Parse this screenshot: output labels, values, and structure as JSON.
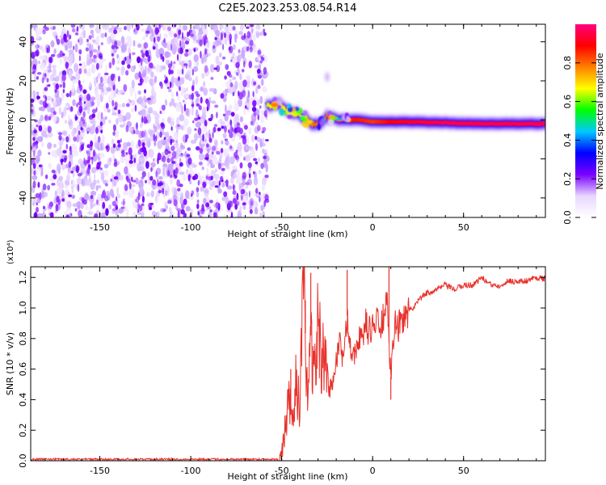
{
  "title": "C2E5.2023.253.08.54.R14",
  "chart_data": [
    {
      "type": "heatmap",
      "xlabel": "Height of straight line (km)",
      "ylabel": "Frequency (Hz)",
      "xlim": [
        -188,
        95
      ],
      "ylim": [
        -50,
        49
      ],
      "xticks": [
        -150,
        -100,
        -50,
        0,
        50
      ],
      "yticks": [
        -40,
        -20,
        0,
        20,
        40
      ],
      "colorbar": {
        "label": "Normalized spectral amplitude",
        "range": [
          0.0,
          1.0
        ],
        "ticks": [
          "0.0",
          "0.2",
          "0.4",
          "0.6",
          "0.8"
        ],
        "colors": [
          "#ffffff",
          "#e8d6ff",
          "#7a00ff",
          "#0000ff",
          "#00c8ff",
          "#00ff00",
          "#ffff00",
          "#ff8000",
          "#ff0000",
          "#ff0080"
        ]
      },
      "noise_region_x": [
        -188,
        -58
      ],
      "ridge": {
        "x": [
          -58,
          -52,
          -47,
          -42,
          -37,
          -33,
          -29,
          -25,
          -21,
          -15,
          -8,
          0,
          10,
          20,
          40,
          60,
          80,
          95
        ],
        "frequency": [
          7,
          8,
          5,
          3,
          1,
          -2,
          -3,
          2,
          0,
          0,
          0,
          -1,
          -1,
          -1,
          -1.5,
          -2,
          -2,
          -2
        ],
        "amplitude": [
          0.45,
          0.6,
          0.45,
          0.5,
          0.5,
          0.7,
          0.75,
          0.7,
          0.8,
          0.85,
          0.85,
          0.8,
          0.9,
          0.95,
          1.0,
          1.0,
          1.0,
          1.0
        ]
      },
      "artifact": {
        "x": -25,
        "frequency": 22
      }
    },
    {
      "type": "line",
      "xlabel": "Height of straight line (km)",
      "ylabel": "SNR (10 * v/v)",
      "scale_label": "(x10⁴)",
      "xlim": [
        -188,
        95
      ],
      "ylim": [
        0,
        1.27
      ],
      "xticks": [
        -150,
        -100,
        -50,
        0,
        50
      ],
      "yticks": [
        "0.0",
        "0.2",
        "0.4",
        "0.6",
        "0.8",
        "1.0",
        "1.2"
      ],
      "color": "#e8302a",
      "x": [
        -188,
        -150,
        -100,
        -52,
        -50,
        -48,
        -46,
        -44,
        -42,
        -40,
        -38,
        -36,
        -34,
        -32,
        -30,
        -28,
        -26,
        -24,
        -22,
        -20,
        -18,
        -16,
        -14,
        -12,
        -10,
        -8,
        -6,
        -4,
        -2,
        0,
        2,
        4,
        6,
        8,
        10,
        12,
        14,
        16,
        18,
        20,
        22,
        25,
        30,
        35,
        40,
        45,
        50,
        55,
        60,
        65,
        70,
        75,
        80,
        85,
        90,
        95
      ],
      "y": [
        0.01,
        0.01,
        0.01,
        0.01,
        0.03,
        0.22,
        0.38,
        0.22,
        0.55,
        0.32,
        1.22,
        0.45,
        0.82,
        0.55,
        0.92,
        0.6,
        0.75,
        0.45,
        0.52,
        0.65,
        0.8,
        0.62,
        0.95,
        0.75,
        0.7,
        0.82,
        0.78,
        0.9,
        0.85,
        0.88,
        0.92,
        0.85,
        0.95,
        1.0,
        0.55,
        0.9,
        0.85,
        0.95,
        0.92,
        1.0,
        0.98,
        1.05,
        1.1,
        1.12,
        1.15,
        1.12,
        1.15,
        1.15,
        1.2,
        1.15,
        1.15,
        1.18,
        1.17,
        1.18,
        1.2,
        1.19
      ],
      "spikes": [
        {
          "x": -34,
          "y": 1.23
        },
        {
          "x": -14,
          "y": 1.25
        },
        {
          "x": 9,
          "y": 1.27
        },
        {
          "x": -45,
          "y": 0.6
        },
        {
          "x": -37,
          "y": 1.05
        },
        {
          "x": 10,
          "y": 0.4
        }
      ]
    }
  ]
}
